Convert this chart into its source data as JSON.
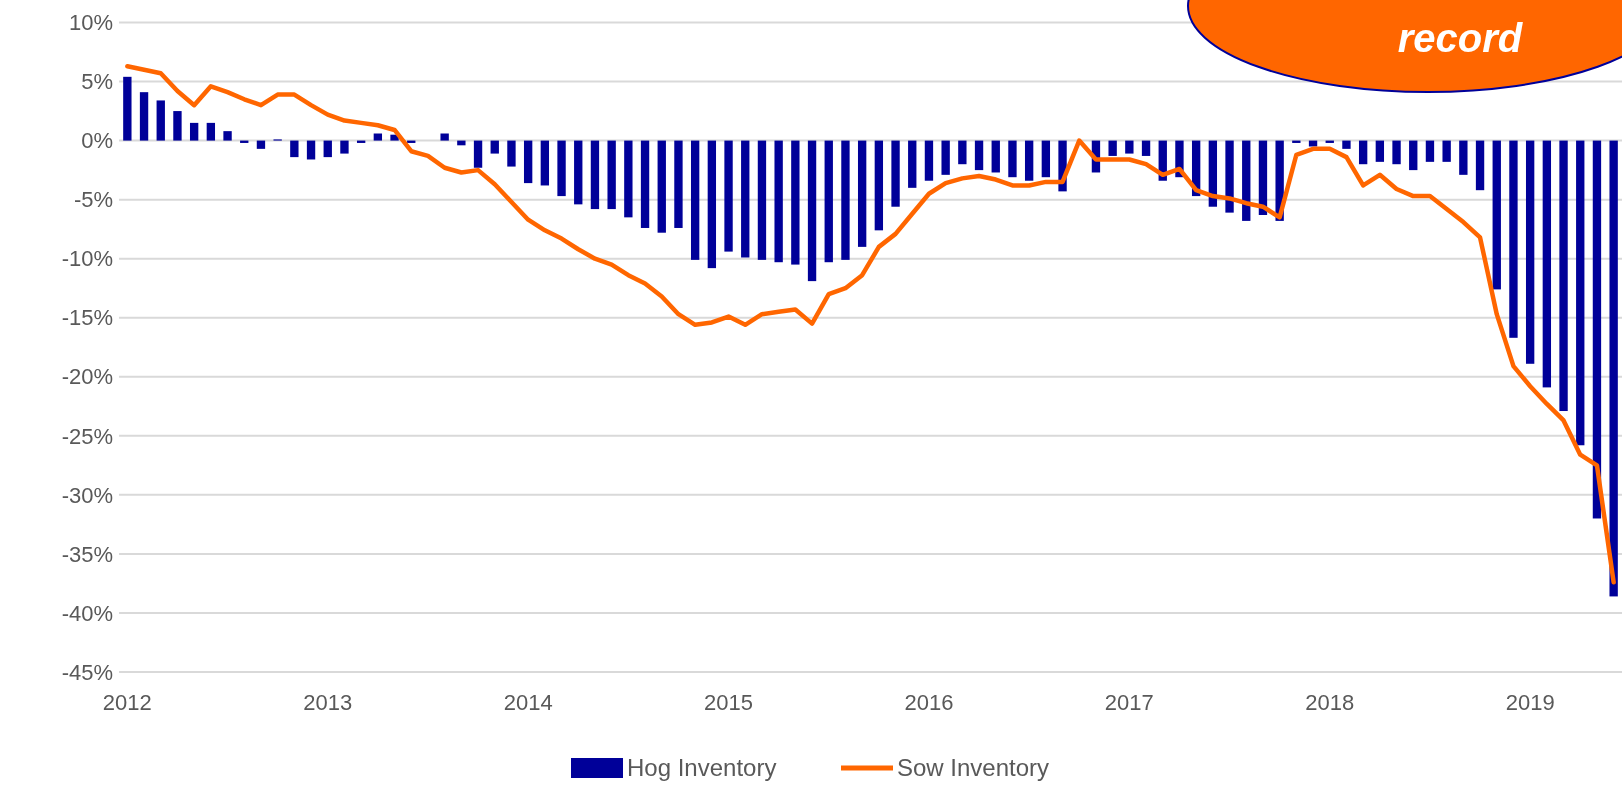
{
  "chart_data": {
    "type": "bar",
    "categories": [
      "2012",
      null,
      null,
      null,
      null,
      null,
      null,
      null,
      null,
      null,
      null,
      null,
      "2013",
      null,
      null,
      null,
      null,
      null,
      null,
      null,
      null,
      null,
      null,
      null,
      "2014",
      null,
      null,
      null,
      null,
      null,
      null,
      null,
      null,
      null,
      null,
      null,
      "2015",
      null,
      null,
      null,
      null,
      null,
      null,
      null,
      null,
      null,
      null,
      null,
      "2016",
      null,
      null,
      null,
      null,
      null,
      null,
      null,
      null,
      null,
      null,
      null,
      "2017",
      null,
      null,
      null,
      null,
      null,
      null,
      null,
      null,
      null,
      null,
      null,
      "2018",
      null,
      null,
      null,
      null,
      null,
      null,
      null,
      null,
      null,
      null,
      null,
      "2019",
      null,
      null,
      null,
      null,
      null
    ],
    "series": [
      {
        "name": "Hog Inventory",
        "color": "#000099",
        "values": [
          5.4,
          4.1,
          3.4,
          2.5,
          1.5,
          1.5,
          0.8,
          -0.2,
          -0.7,
          0.1,
          -1.4,
          -1.6,
          -1.4,
          -1.1,
          -0.2,
          0.6,
          0.5,
          -0.2,
          0,
          0.6,
          -0.4,
          -2.3,
          -1.1,
          -2.2,
          -3.6,
          -3.8,
          -4.7,
          -5.4,
          -5.8,
          -5.8,
          -6.5,
          -7.4,
          -7.8,
          -7.4,
          -10.1,
          -10.8,
          -9.4,
          -9.9,
          -10.1,
          -10.3,
          -10.5,
          -11.9,
          -10.3,
          -10.1,
          -9.0,
          -7.6,
          -5.6,
          -4.0,
          -3.4,
          -2.9,
          -2.0,
          -2.5,
          -2.7,
          -3.1,
          -3.4,
          -3.1,
          -4.3,
          null,
          -2.7,
          -1.3,
          -1.1,
          -1.3,
          -3.4,
          -3.1,
          -4.7,
          -5.6,
          -6.1,
          -6.8,
          -6.3,
          -6.8,
          -0.2,
          -0.5,
          -0.2,
          -0.7,
          -2.0,
          -1.8,
          -2.0,
          -2.5,
          -1.8,
          -1.8,
          -2.9,
          -4.2,
          -12.6,
          -16.7,
          -18.9,
          -20.9,
          -22.9,
          -25.8,
          -32.0,
          -38.6
        ]
      },
      {
        "name": "Sow Inventory",
        "type": "line",
        "color": "#ff6600",
        "values": [
          6.3,
          6.0,
          5.7,
          4.2,
          3.0,
          4.6,
          4.1,
          3.5,
          3.0,
          3.9,
          3.9,
          3.0,
          2.2,
          1.7,
          1.5,
          1.3,
          0.9,
          -0.9,
          -1.3,
          -2.3,
          -2.7,
          -2.5,
          -3.7,
          -5.2,
          -6.7,
          -7.6,
          -8.3,
          -9.2,
          -10.0,
          -10.5,
          -11.4,
          -12.1,
          -13.2,
          -14.7,
          -15.6,
          -15.4,
          -14.9,
          -15.6,
          -14.7,
          -14.5,
          -14.3,
          -15.5,
          -13.0,
          -12.5,
          -11.4,
          -9.0,
          -7.9,
          -6.2,
          -4.5,
          -3.6,
          -3.2,
          -3.0,
          -3.3,
          -3.8,
          -3.8,
          -3.5,
          -3.5,
          0.0,
          -1.6,
          -1.6,
          -1.6,
          -2.0,
          -2.9,
          -2.4,
          -4.2,
          -4.7,
          -4.9,
          -5.3,
          -5.6,
          -6.5,
          -1.2,
          -0.7,
          -0.7,
          -1.4,
          -3.8,
          -2.9,
          -4.1,
          -4.7,
          -4.7,
          -5.8,
          -6.9,
          -8.2,
          -14.7,
          -19.1,
          -20.8,
          -22.3,
          -23.7,
          -26.6,
          -27.5,
          -37.4
        ]
      }
    ],
    "ylim": [
      -45,
      10
    ],
    "yticks": [
      {
        "value": 10,
        "label": "10%"
      },
      {
        "value": 5,
        "label": "5%"
      },
      {
        "value": 0,
        "label": "0%"
      },
      {
        "value": -5,
        "label": "-5%"
      },
      {
        "value": -10,
        "label": "-10%"
      },
      {
        "value": -15,
        "label": "-15%"
      },
      {
        "value": -20,
        "label": "-20%"
      },
      {
        "value": -25,
        "label": "-25%"
      },
      {
        "value": -30,
        "label": "-30%"
      },
      {
        "value": -35,
        "label": "-35%"
      },
      {
        "value": -40,
        "label": "-40%"
      },
      {
        "value": -45,
        "label": "-45%"
      }
    ],
    "grid": "y",
    "legend": "bottom",
    "marker": "none",
    "line_style": "solid",
    "annotations": [
      "record"
    ]
  }
}
